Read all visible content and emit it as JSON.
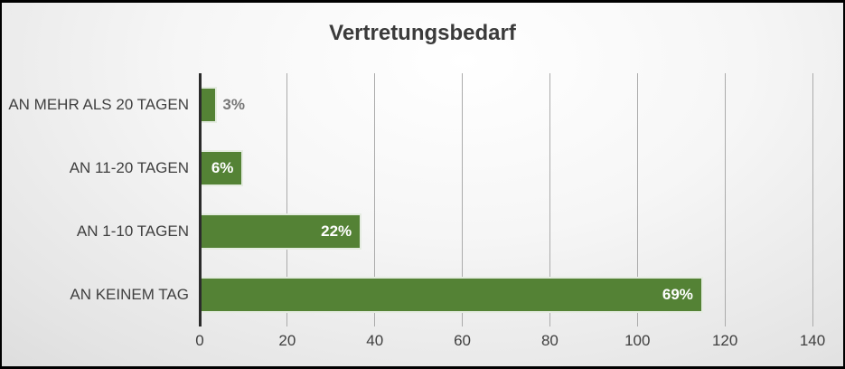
{
  "chart_data": {
    "type": "bar",
    "orientation": "horizontal",
    "title": "Vertretungsbedarf",
    "categories": [
      "AN MEHR ALS 20 TAGEN",
      "AN 11-20 TAGEN",
      "AN 1-10 TAGEN",
      "AN KEINEM TAG"
    ],
    "values": [
      4,
      10,
      37,
      115
    ],
    "data_labels": [
      "3%",
      "6%",
      "22%",
      "69%"
    ],
    "xlim": [
      0,
      140
    ],
    "x_ticks": [
      "0",
      "20",
      "40",
      "60",
      "80",
      "100",
      "120",
      "140"
    ],
    "grid": true,
    "legend": "none",
    "colors": {
      "bar": "#548235",
      "bar_outline": "rgba(255,255,255,0.85)",
      "label_inside": "#ffffff",
      "label_outside": "#787878",
      "gridline": "#ababab",
      "value_axis_line": "#2b2b2b",
      "text": "#3f3f3f"
    }
  }
}
